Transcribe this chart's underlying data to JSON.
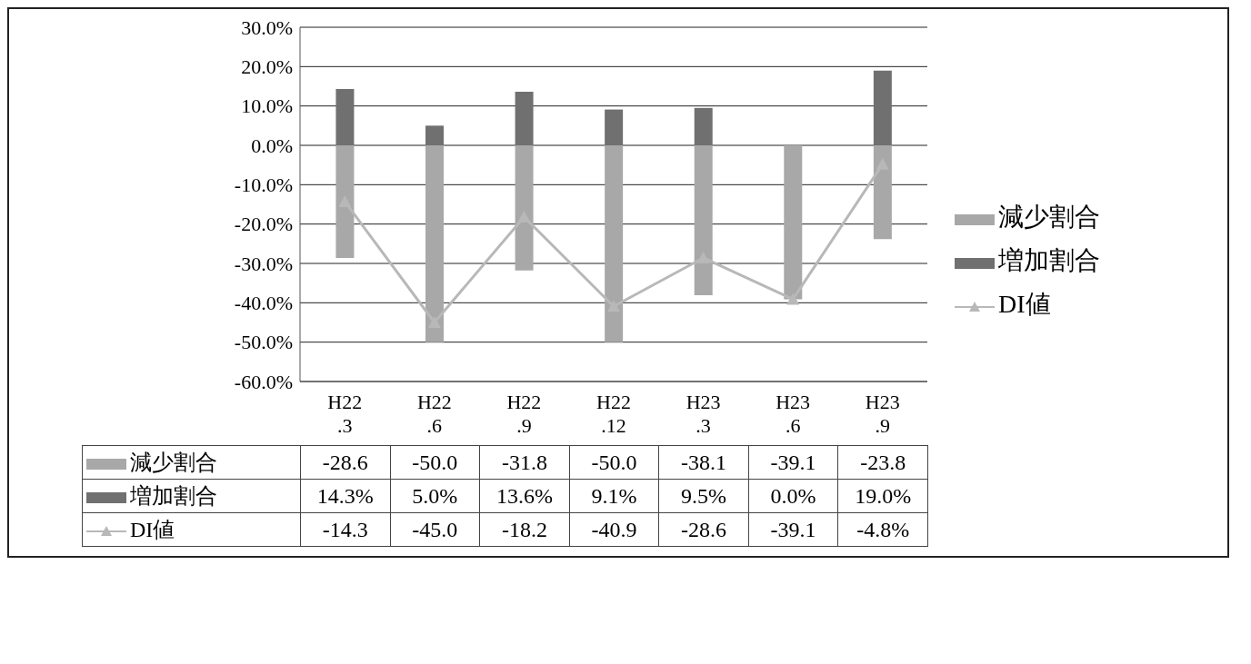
{
  "chart_data": {
    "type": "bar",
    "stacked": true,
    "categories": [
      "H22\n.3",
      "H22\n.6",
      "H22\n.9",
      "H22\n.12",
      "H23\n.3",
      "H23\n.6",
      "H23\n.9"
    ],
    "series": [
      {
        "name": "減少割合",
        "color": "#a8a8a8",
        "values": [
          -28.6,
          -50.0,
          -31.8,
          -50.0,
          -38.1,
          -39.1,
          -23.8
        ],
        "value_labels": [
          "-28.6",
          "-50.0",
          "-31.8",
          "-50.0",
          "-38.1",
          "-39.1",
          "-23.8"
        ]
      },
      {
        "name": "増加割合",
        "color": "#707070",
        "values": [
          14.3,
          5.0,
          13.6,
          9.1,
          9.5,
          0.0,
          19.0
        ],
        "value_labels": [
          "14.3%",
          "5.0%",
          "13.6%",
          "9.1%",
          "9.5%",
          "0.0%",
          "19.0%"
        ]
      },
      {
        "name": "DI値",
        "type": "line",
        "color": "#b8b8b8",
        "marker": "triangle",
        "values": [
          -14.3,
          -45.0,
          -18.2,
          -40.9,
          -28.6,
          -39.1,
          -4.8
        ],
        "value_labels": [
          "-14.3",
          "-45.0",
          "-18.2",
          "-40.9",
          "-28.6",
          "-39.1",
          "-4.8%"
        ]
      }
    ],
    "ylim": [
      -60,
      30
    ],
    "yticks": [
      {
        "value": -60,
        "label": "-60.0%"
      },
      {
        "value": -50,
        "label": "-50.0%"
      },
      {
        "value": -40,
        "label": "-40.0%"
      },
      {
        "value": -30,
        "label": "-30.0%"
      },
      {
        "value": -20,
        "label": "-20.0%"
      },
      {
        "value": -10,
        "label": "-10.0%"
      },
      {
        "value": 0,
        "label": "0.0%"
      },
      {
        "value": 10,
        "label": "10.0%"
      },
      {
        "value": 20,
        "label": "20.0%"
      },
      {
        "value": 30,
        "label": "30.0%"
      }
    ],
    "grid": "y",
    "legend": "right"
  }
}
